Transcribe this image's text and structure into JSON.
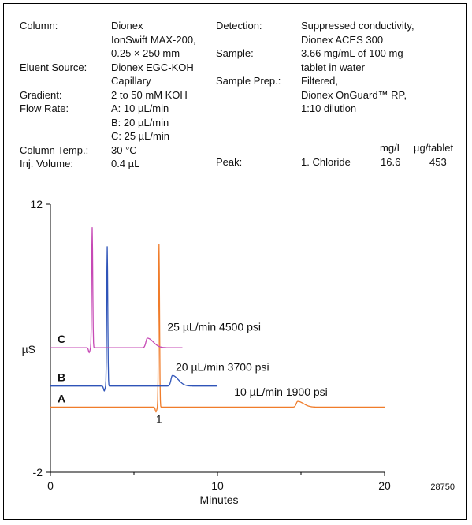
{
  "conditions": {
    "left": [
      {
        "label": "Column:",
        "value": [
          "Dionex",
          "IonSwift MAX-200,",
          "0.25 × 250 mm"
        ]
      },
      {
        "label": "Eluent Source:",
        "value": [
          "Dionex EGC-KOH",
          "Capillary"
        ]
      },
      {
        "label": "Gradient:",
        "value": [
          "2 to 50 mM KOH"
        ]
      },
      {
        "label": "Flow Rate:",
        "value": [
          "A: 10 µL/min",
          "B:  20  µL/min",
          "C:  25 µL/min"
        ]
      },
      {
        "label": "Column Temp.:",
        "value": [
          "30 °C"
        ]
      },
      {
        "label": "Inj. Volume:",
        "value": [
          "0.4 µL"
        ]
      }
    ],
    "right": [
      {
        "label": "Detection:",
        "value": [
          "Suppressed conductivity,",
          "Dionex ACES 300"
        ]
      },
      {
        "label": "Sample:",
        "value": [
          "3.66 mg/mL of 100 mg",
          "tablet in water"
        ]
      },
      {
        "label": "Sample Prep.:",
        "value": [
          "Filtered,",
          "Dionex OnGuard™ RP,",
          "1:10 dilution"
        ]
      }
    ],
    "peak_table": {
      "col_mgL": "mg/L",
      "col_ugtab": "µg/tablet",
      "label": "Peak:",
      "name": "1. Chloride",
      "mgL": "16.6",
      "ugtab": "453"
    }
  },
  "chart_data": {
    "type": "line",
    "xlabel": "Minutes",
    "ylabel": "µS",
    "xlim": [
      0,
      20
    ],
    "ylim": [
      -2,
      12
    ],
    "x_ticks": [
      "0",
      "10",
      "20"
    ],
    "y_ticks": [
      "12",
      "-2"
    ],
    "peak_label": "1",
    "series": [
      {
        "name": "A",
        "annotation": "10 µL/min  1900 psi",
        "color": "#f07c2a",
        "x_end": 20,
        "baseline": 1.4,
        "peak_x": 6.5,
        "peak_height": 8.5,
        "bumps": [
          {
            "x": 14.8,
            "h": 0.3
          }
        ]
      },
      {
        "name": "B",
        "annotation": "20 µL/min  3700 psi",
        "color": "#2f54b8",
        "x_end": 10,
        "baseline": 2.5,
        "peak_x": 3.4,
        "peak_height": 7.3,
        "bumps": [
          {
            "x": 7.3,
            "h": 0.55
          }
        ]
      },
      {
        "name": "C",
        "annotation": "25 µL/min  4500 psi",
        "color": "#c649b5",
        "x_end": 7.9,
        "baseline": 4.5,
        "peak_x": 2.5,
        "peak_height": 6.3,
        "bumps": [
          {
            "x": 5.8,
            "h": 0.5
          }
        ]
      }
    ]
  },
  "figure_id": "28750"
}
